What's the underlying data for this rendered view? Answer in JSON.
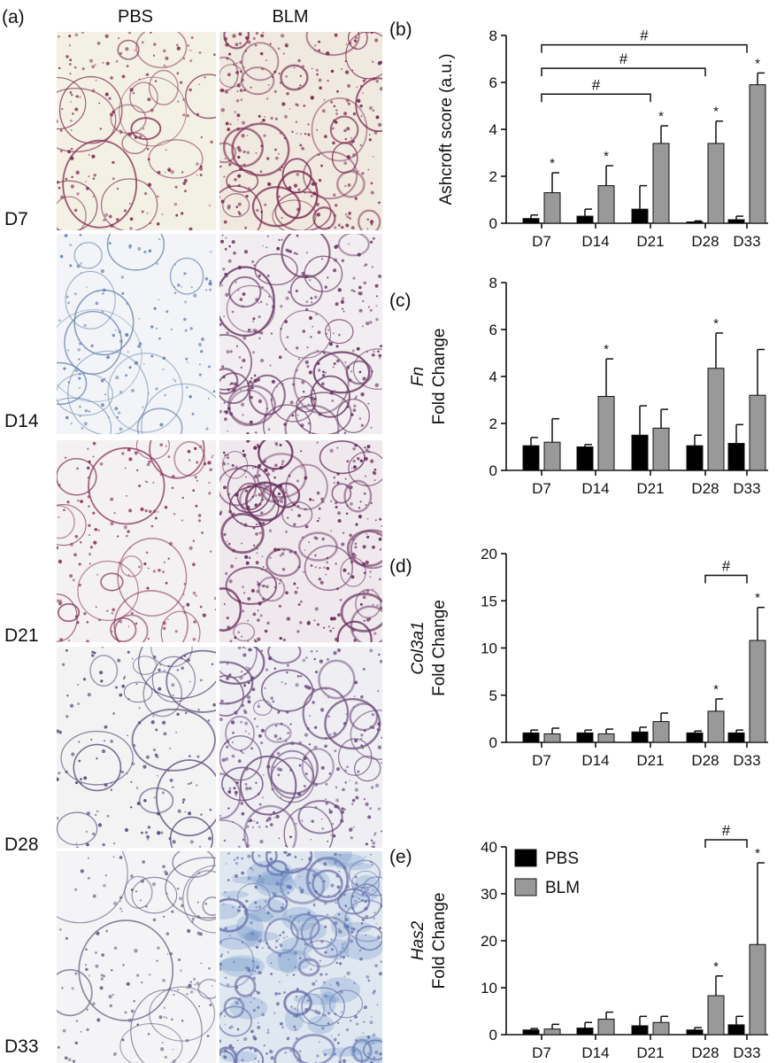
{
  "panel_a": {
    "label": "(a)",
    "columns": [
      "PBS",
      "BLM"
    ],
    "rows": [
      "D7",
      "D14",
      "D21",
      "D28",
      "D33"
    ]
  },
  "colors": {
    "pbs": "#000000",
    "blm": "#999999",
    "axis": "#111111"
  },
  "chart_data": [
    {
      "type": "bar",
      "panel_label": "(b)",
      "ylabel_lines": [
        "Ashcroft score (a.u.)"
      ],
      "categories": [
        "D7",
        "D14",
        "D21",
        "D28",
        "D33"
      ],
      "ylim": [
        0,
        8
      ],
      "yticks": [
        0,
        2,
        4,
        6,
        8
      ],
      "series": [
        {
          "name": "PBS",
          "values": [
            0.2,
            0.3,
            0.6,
            0.05,
            0.15
          ],
          "errors": [
            0.15,
            0.3,
            1.0,
            0.05,
            0.15
          ]
        },
        {
          "name": "BLM",
          "values": [
            1.3,
            1.6,
            3.4,
            3.4,
            5.9
          ],
          "errors": [
            0.85,
            0.85,
            0.75,
            0.95,
            0.5
          ]
        }
      ],
      "stars": [
        {
          "series": 1,
          "index": 0
        },
        {
          "series": 1,
          "index": 1
        },
        {
          "series": 1,
          "index": 2
        },
        {
          "series": 1,
          "index": 3
        },
        {
          "series": 1,
          "index": 4
        }
      ],
      "brackets": [
        {
          "from": 0,
          "to": 4,
          "level": 7.6,
          "text": "#"
        },
        {
          "from": 0,
          "to": 3,
          "level": 6.6,
          "text": "#"
        },
        {
          "from": 0,
          "to": 2,
          "level": 5.5,
          "text": "#"
        }
      ]
    },
    {
      "type": "bar",
      "panel_label": "(c)",
      "ylabel_lines": [
        "Fn",
        "Fold Change"
      ],
      "categories": [
        "D7",
        "D14",
        "D21",
        "D28",
        "D33"
      ],
      "ylim": [
        0,
        8
      ],
      "yticks": [
        0,
        2,
        4,
        6,
        8
      ],
      "series": [
        {
          "name": "PBS",
          "values": [
            1.05,
            1.0,
            1.5,
            1.05,
            1.15
          ],
          "errors": [
            0.35,
            0.1,
            1.25,
            0.45,
            0.8
          ]
        },
        {
          "name": "BLM",
          "values": [
            1.2,
            3.15,
            1.8,
            4.35,
            3.2
          ],
          "errors": [
            1.0,
            1.6,
            0.8,
            1.5,
            1.95
          ]
        }
      ],
      "stars": [
        {
          "series": 1,
          "index": 1
        },
        {
          "series": 1,
          "index": 3
        }
      ],
      "brackets": []
    },
    {
      "type": "bar",
      "panel_label": "(d)",
      "ylabel_lines": [
        "Col3a1",
        "Fold Change"
      ],
      "categories": [
        "D7",
        "D14",
        "D21",
        "D28",
        "D33"
      ],
      "ylim": [
        0,
        20
      ],
      "yticks": [
        0,
        5,
        10,
        15,
        20
      ],
      "series": [
        {
          "name": "PBS",
          "values": [
            1.0,
            1.0,
            1.1,
            1.0,
            1.0
          ],
          "errors": [
            0.3,
            0.3,
            0.5,
            0.2,
            0.3
          ]
        },
        {
          "name": "BLM",
          "values": [
            0.9,
            0.9,
            2.2,
            3.3,
            10.8
          ],
          "errors": [
            0.6,
            0.5,
            0.9,
            1.3,
            3.5
          ]
        }
      ],
      "stars": [
        {
          "series": 1,
          "index": 3
        },
        {
          "series": 1,
          "index": 4
        }
      ],
      "brackets": [
        {
          "from": 3,
          "to": 4,
          "level": 17.7,
          "text": "#"
        }
      ]
    },
    {
      "type": "bar",
      "panel_label": "(e)",
      "ylabel_lines": [
        "Has2",
        "Fold Change"
      ],
      "categories": [
        "D7",
        "D14",
        "D21",
        "D28",
        "D33"
      ],
      "ylim": [
        0,
        40
      ],
      "yticks": [
        0,
        10,
        20,
        30,
        40
      ],
      "series": [
        {
          "name": "PBS",
          "values": [
            1.0,
            1.4,
            1.9,
            1.0,
            2.1
          ],
          "errors": [
            0.3,
            1.2,
            2.0,
            0.5,
            1.8
          ]
        },
        {
          "name": "BLM",
          "values": [
            1.2,
            3.3,
            2.6,
            8.3,
            19.2
          ],
          "errors": [
            1.0,
            1.5,
            1.3,
            4.2,
            17.4
          ]
        }
      ],
      "stars": [
        {
          "series": 1,
          "index": 3
        },
        {
          "series": 1,
          "index": 4
        }
      ],
      "brackets": [
        {
          "from": 3,
          "to": 4,
          "level": 41.5,
          "text": "#"
        }
      ],
      "legend": {
        "entries": [
          "PBS",
          "BLM"
        ],
        "placement": "top-left"
      }
    }
  ]
}
